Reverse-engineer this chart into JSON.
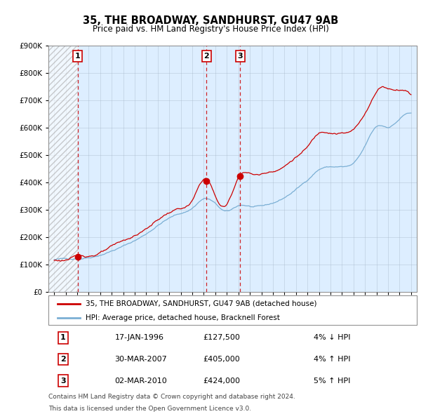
{
  "title": "35, THE BROADWAY, SANDHURST, GU47 9AB",
  "subtitle": "Price paid vs. HM Land Registry's House Price Index (HPI)",
  "legend_line1": "35, THE BROADWAY, SANDHURST, GU47 9AB (detached house)",
  "legend_line2": "HPI: Average price, detached house, Bracknell Forest",
  "footer1": "Contains HM Land Registry data © Crown copyright and database right 2024.",
  "footer2": "This data is licensed under the Open Government Licence v3.0.",
  "transactions": [
    {
      "num": 1,
      "date": "17-JAN-1996",
      "price": "£127,500",
      "year": 1996.04,
      "price_val": 127500,
      "pct": "4%",
      "dir": "↓"
    },
    {
      "num": 2,
      "date": "30-MAR-2007",
      "price": "£405,000",
      "year": 2007.24,
      "price_val": 405000,
      "pct": "4%",
      "dir": "↑"
    },
    {
      "num": 3,
      "date": "02-MAR-2010",
      "price": "£424,000",
      "year": 2010.17,
      "price_val": 424000,
      "pct": "5%",
      "dir": "↑"
    }
  ],
  "hpi_color": "#7bafd4",
  "price_color": "#cc0000",
  "background_color": "#ddeeff",
  "hatch_bg": "#e8e8e8",
  "ylim": [
    0,
    900000
  ],
  "yticks": [
    0,
    100000,
    200000,
    300000,
    400000,
    500000,
    600000,
    700000,
    800000,
    900000
  ],
  "xlim_start": 1993.5,
  "xlim_end": 2025.5,
  "xticks": [
    1994,
    1995,
    1996,
    1997,
    1998,
    1999,
    2000,
    2001,
    2002,
    2003,
    2004,
    2005,
    2006,
    2007,
    2008,
    2009,
    2010,
    2011,
    2012,
    2013,
    2014,
    2015,
    2016,
    2017,
    2018,
    2019,
    2020,
    2021,
    2022,
    2023,
    2024,
    2025
  ]
}
